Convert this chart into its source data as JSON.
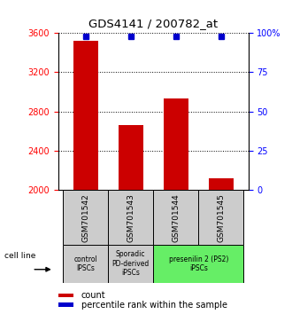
{
  "title": "GDS4141 / 200782_at",
  "samples": [
    "GSM701542",
    "GSM701543",
    "GSM701544",
    "GSM701545"
  ],
  "counts": [
    3520,
    2660,
    2930,
    2120
  ],
  "percentiles": [
    98,
    98,
    98,
    98
  ],
  "ylim_left": [
    2000,
    3600
  ],
  "ylim_right": [
    0,
    100
  ],
  "yticks_left": [
    2000,
    2400,
    2800,
    3200,
    3600
  ],
  "yticks_right": [
    0,
    25,
    50,
    75,
    100
  ],
  "bar_color": "#cc0000",
  "dot_color": "#0000cc",
  "groups": [
    {
      "label": "control\nIPSCs",
      "samples": [
        0
      ],
      "color": "#cccccc"
    },
    {
      "label": "Sporadic\nPD-derived\niPSCs",
      "samples": [
        1
      ],
      "color": "#cccccc"
    },
    {
      "label": "presenilin 2 (PS2)\niPSCs",
      "samples": [
        2,
        3
      ],
      "color": "#66ee66"
    }
  ],
  "cell_line_label": "cell line",
  "legend_count_label": "count",
  "legend_percentile_label": "percentile rank within the sample",
  "title_fontsize": 9.5,
  "tick_fontsize": 7,
  "sample_fontsize": 6.5,
  "group_fontsize": 5.5,
  "legend_fontsize": 7
}
